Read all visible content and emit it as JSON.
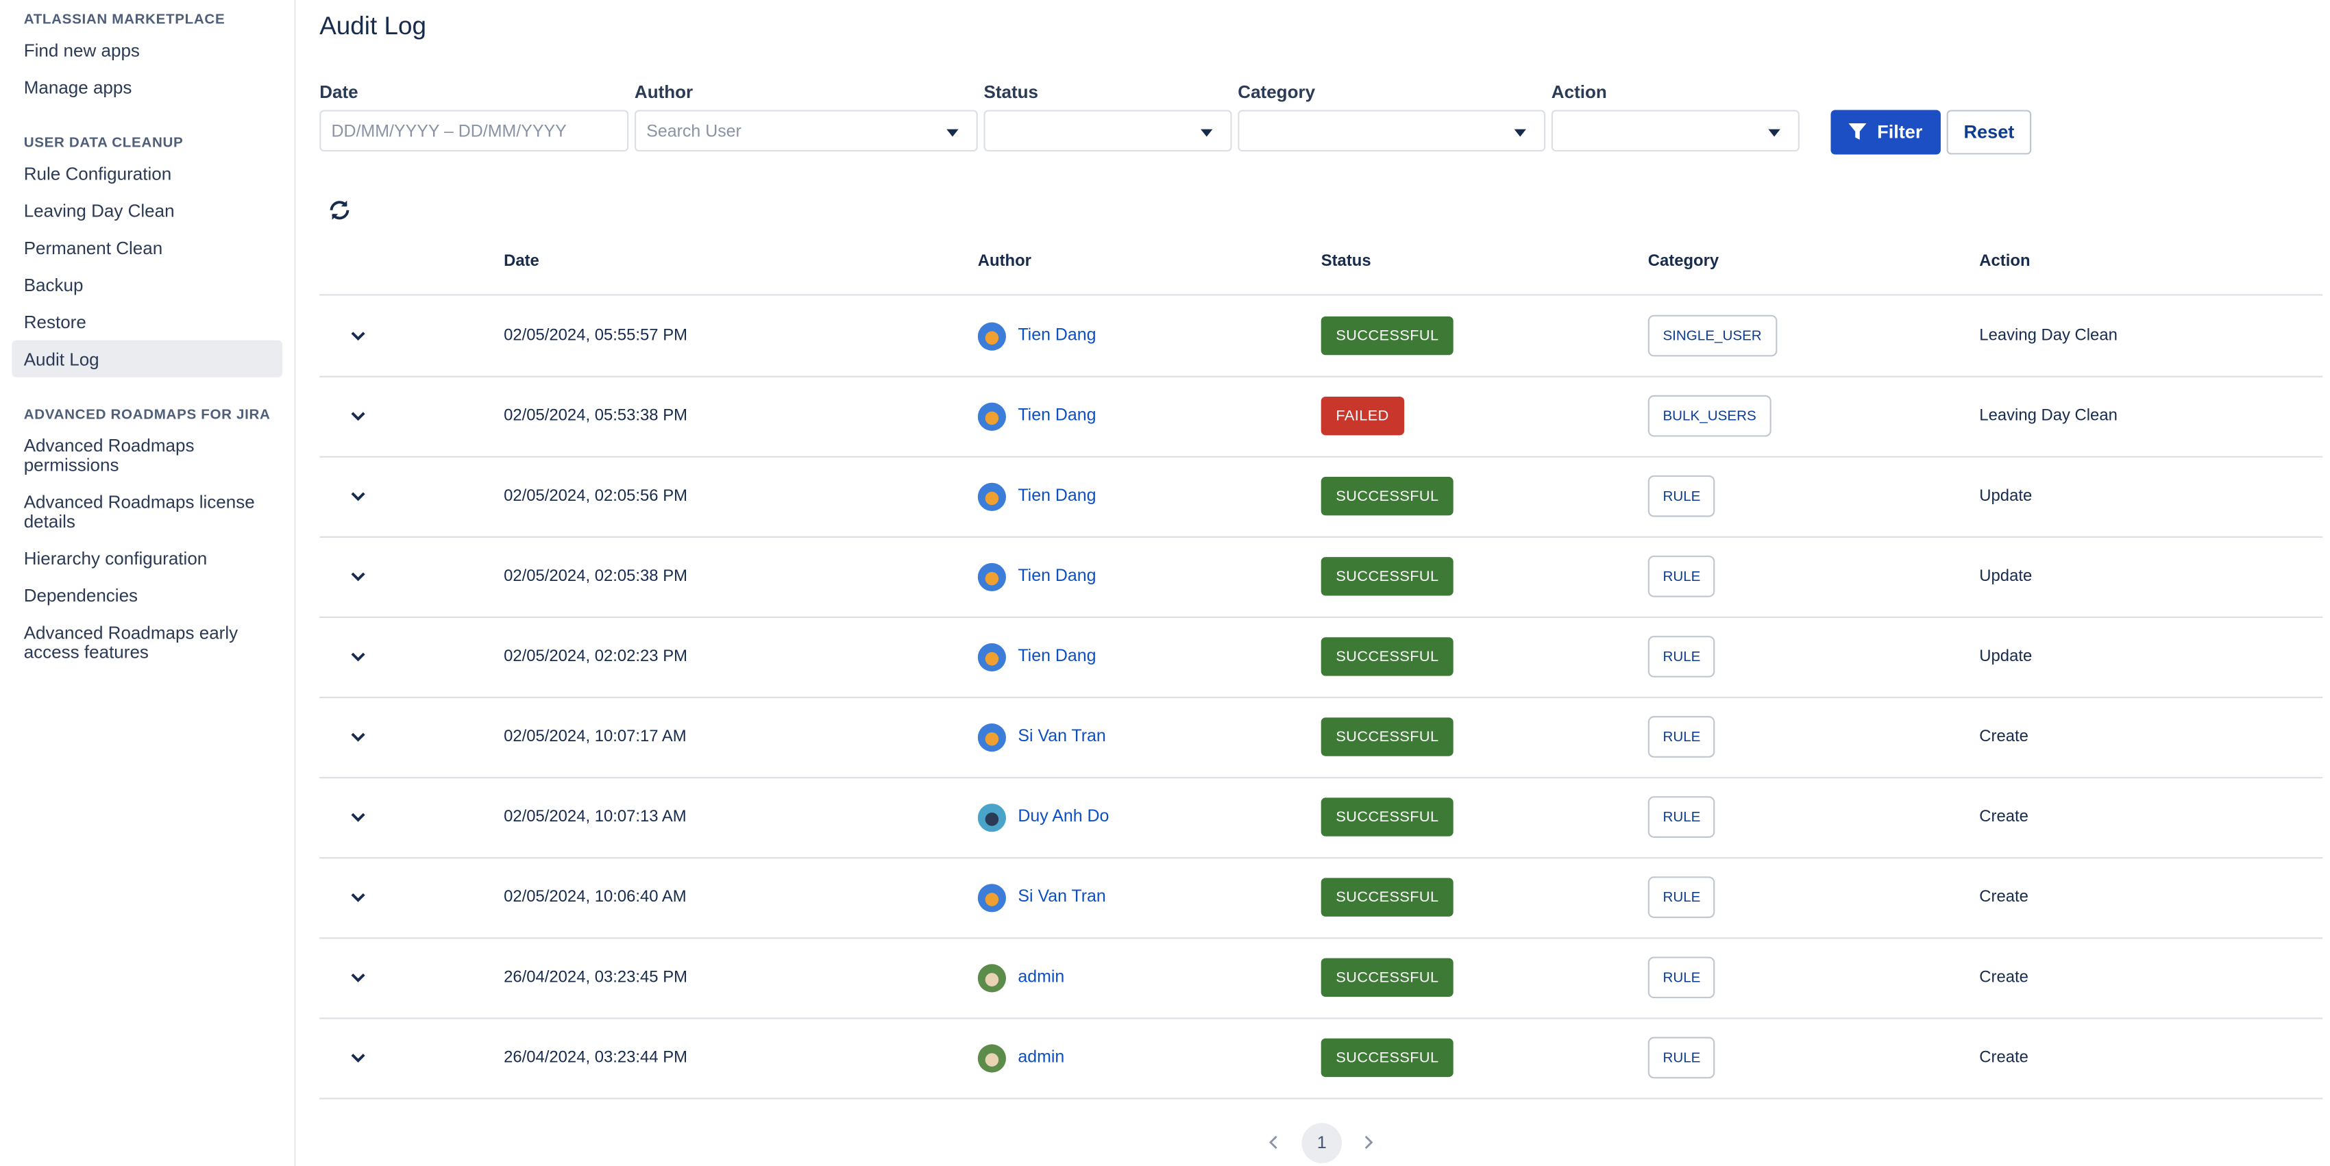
{
  "sidebar": {
    "sections": [
      {
        "heading": "ATLASSIAN MARKETPLACE",
        "items": [
          "Find new apps",
          "Manage apps"
        ]
      },
      {
        "heading": "USER DATA CLEANUP",
        "items": [
          "Rule Configuration",
          "Leaving Day Clean",
          "Permanent Clean",
          "Backup",
          "Restore",
          "Audit Log"
        ]
      },
      {
        "heading": "ADVANCED ROADMAPS FOR JIRA",
        "items": [
          "Advanced Roadmaps permissions",
          "Advanced Roadmaps license details",
          "Hierarchy configuration",
          "Dependencies",
          "Advanced Roadmaps early access features"
        ]
      }
    ]
  },
  "header": {
    "title": "Audit Log"
  },
  "filters": [
    {
      "label": "Date",
      "placeholder": "DD/MM/YYYY – DD/MM/YYYY"
    },
    {
      "label": "Author",
      "placeholder": "Search User"
    },
    {
      "label": "Status",
      "placeholder": null
    },
    {
      "label": "Category",
      "placeholder": null
    },
    {
      "label": "Action",
      "placeholder": null
    }
  ],
  "buttons": {
    "filter": "Filter",
    "reset": "Reset"
  },
  "table": {
    "columns": [
      "Date",
      "Author",
      "Status",
      "Category",
      "Action"
    ],
    "rows": [
      [
        "02/05/2024, 05:55:57 PM",
        "Tien Dang",
        "SUCCESSFUL",
        "SINGLE_USER",
        "Leaving Day Clean"
      ],
      [
        "02/05/2024, 05:53:38 PM",
        "Tien Dang",
        "FAILED",
        "BULK_USERS",
        "Leaving Day Clean"
      ],
      [
        "02/05/2024, 02:05:56 PM",
        "Tien Dang",
        "SUCCESSFUL",
        "RULE",
        "Update"
      ],
      [
        "02/05/2024, 02:05:38 PM",
        "Tien Dang",
        "SUCCESSFUL",
        "RULE",
        "Update"
      ],
      [
        "02/05/2024, 02:02:23 PM",
        "Tien Dang",
        "SUCCESSFUL",
        "RULE",
        "Update"
      ],
      [
        "02/05/2024, 10:07:17 AM",
        "Si Van Tran",
        "SUCCESSFUL",
        "RULE",
        "Create"
      ],
      [
        "02/05/2024, 10:07:13 AM",
        "Duy Anh Do",
        "SUCCESSFUL",
        "RULE",
        "Create"
      ],
      [
        "02/05/2024, 10:06:40 AM",
        "Si Van Tran",
        "SUCCESSFUL",
        "RULE",
        "Create"
      ],
      [
        "26/04/2024, 03:23:45 PM",
        "admin",
        "SUCCESSFUL",
        "RULE",
        "Create"
      ],
      [
        "26/04/2024, 03:23:44 PM",
        "admin",
        "SUCCESSFUL",
        "RULE",
        "Create"
      ]
    ],
    "status_colors": [
      "#3d7a35",
      "#c9372c",
      "#3d7a35",
      "#3d7a35",
      "#3d7a35",
      "#3d7a35",
      "#3d7a35",
      "#3d7a35",
      "#3d7a35",
      "#3d7a35"
    ]
  },
  "pagination": {
    "current": "1"
  }
}
